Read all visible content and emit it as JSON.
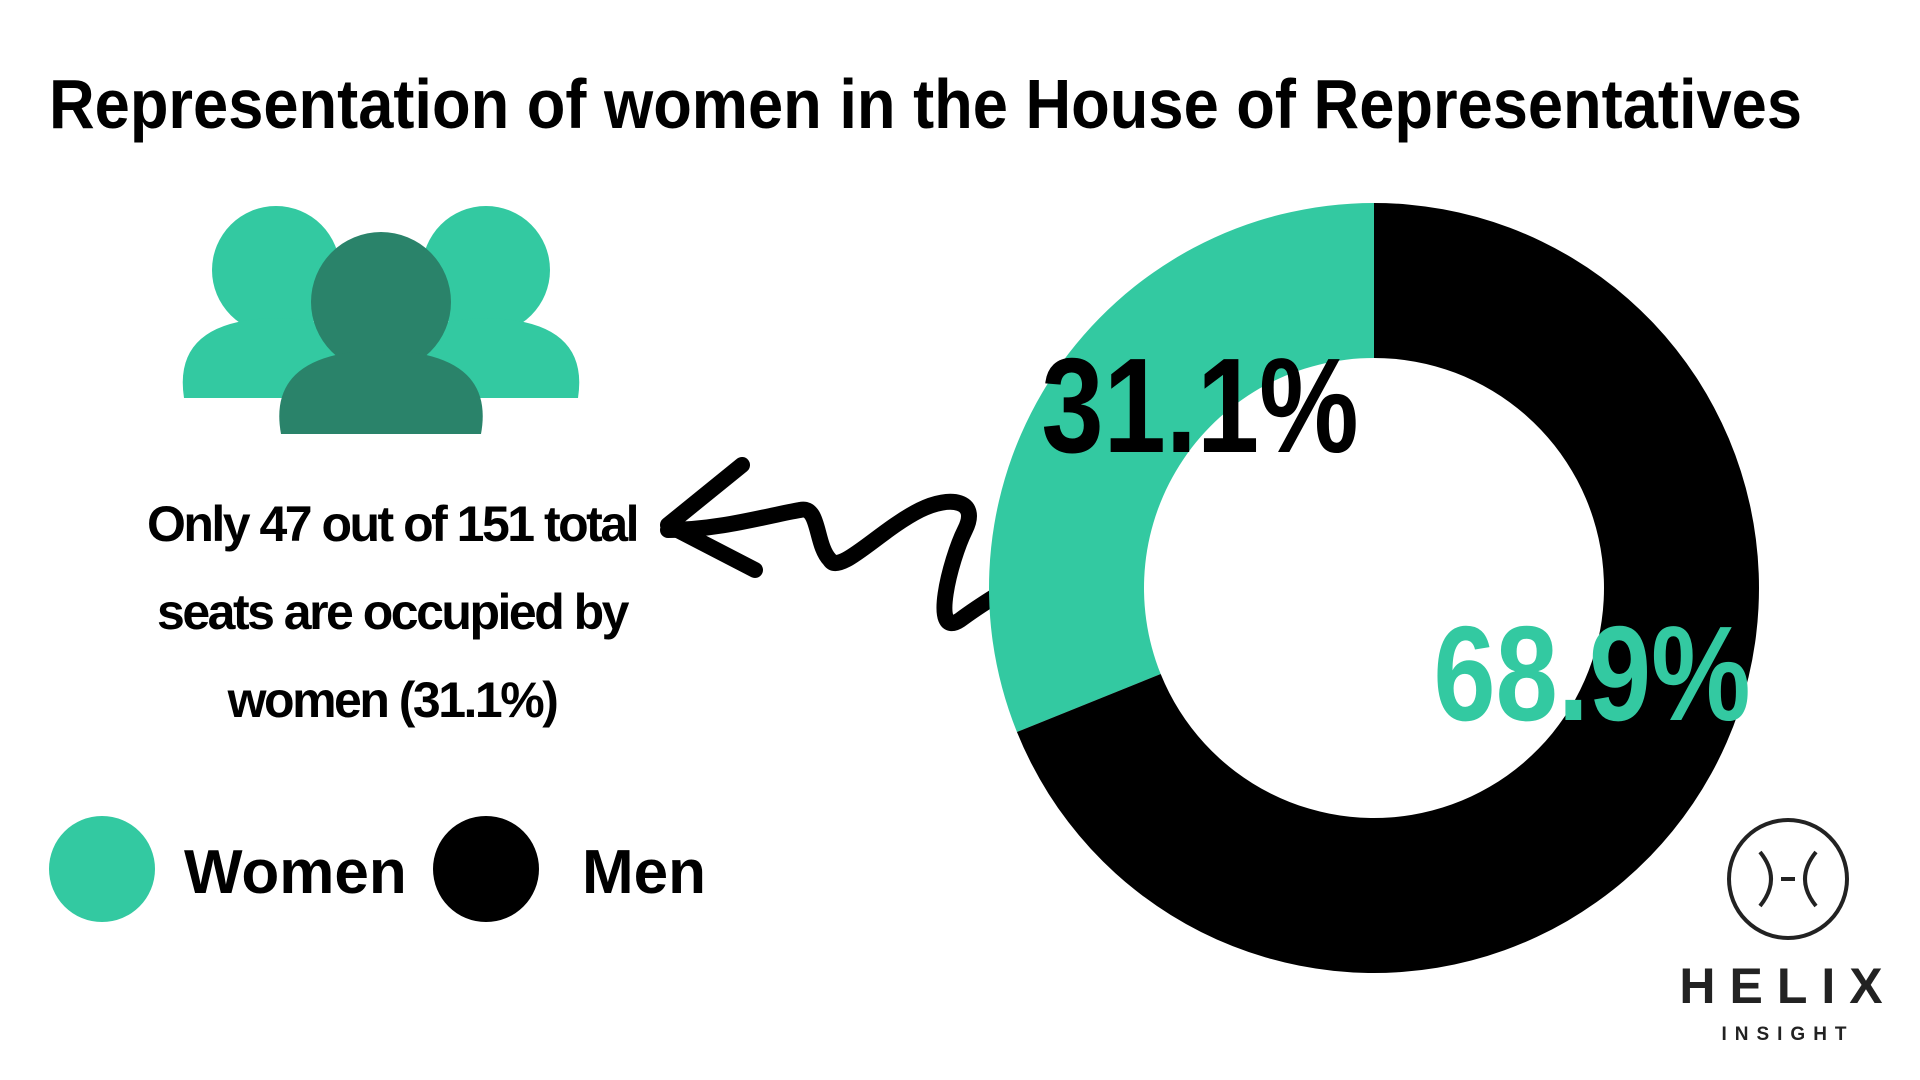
{
  "chart_data": {
    "type": "donut",
    "title": "Representation of women in the House of Representatives",
    "categories": [
      "Women",
      "Men"
    ],
    "values": [
      31.1,
      68.9
    ],
    "value_labels": [
      "31.1%",
      "68.9%"
    ],
    "colors": [
      "#33c9a1",
      "#000000"
    ],
    "annotation": "Only 47 out of 151 total seats are occupied by women (31.1%)",
    "legend": "bottom-left"
  },
  "logo": {
    "name": "HELIX",
    "tagline": "INSIGHT"
  }
}
